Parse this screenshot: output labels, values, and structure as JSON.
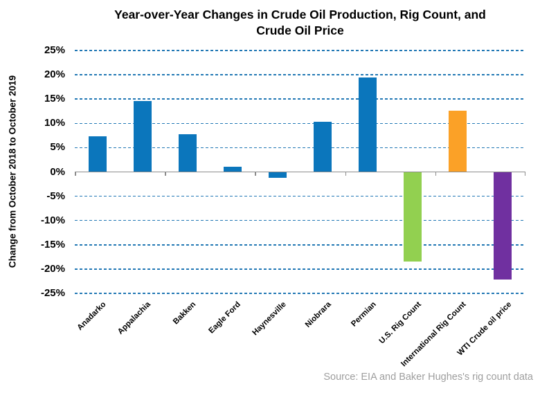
{
  "title": "Year-over-Year Changes in Crude Oil Production, Rig Count, and Crude Oil Price",
  "source": "Source: EIA and Baker Hughes's rig count data",
  "chart_data": {
    "type": "bar",
    "title": "Year-over-Year Changes in Crude Oil Production, Rig Count, and Crude Oil Price",
    "xlabel": "",
    "ylabel": "Change from October 2018 to October 2019",
    "categories": [
      "Anadarko",
      "Appalachia",
      "Bakken",
      "Eagle Ford",
      "Haynesville",
      "Niobrara",
      "Permian",
      "U.S. Rig Count",
      "International Rig Count",
      "WTI Crude oil price"
    ],
    "values": [
      7.4,
      14.6,
      7.8,
      1.1,
      -1.2,
      10.3,
      19.5,
      -18.4,
      12.6,
      -22.2
    ],
    "bar_colors": [
      "#0B76BC",
      "#0B76BC",
      "#0B76BC",
      "#0B76BC",
      "#0B76BC",
      "#0B76BC",
      "#0B76BC",
      "#92D050",
      "#FBA127",
      "#7030A0"
    ],
    "ylim": [
      -25,
      25
    ],
    "ytick_step": 5,
    "ytick_labels": [
      "25%",
      "20%",
      "15%",
      "10%",
      "5%",
      "0%",
      "-5%",
      "-10%",
      "-15%",
      "-20%",
      "-25%"
    ],
    "grid": "horizontal-dashed",
    "legend": "none",
    "xtick_interval": 2,
    "colors": {
      "bar_blue": "#0B76BC",
      "bar_green": "#92D050",
      "bar_orange": "#FBA127",
      "bar_purple": "#7030A0",
      "gridline": "#2077B4",
      "axis": "#8C8C8C",
      "source_text": "#9E9E9E",
      "text": "#000000"
    }
  }
}
